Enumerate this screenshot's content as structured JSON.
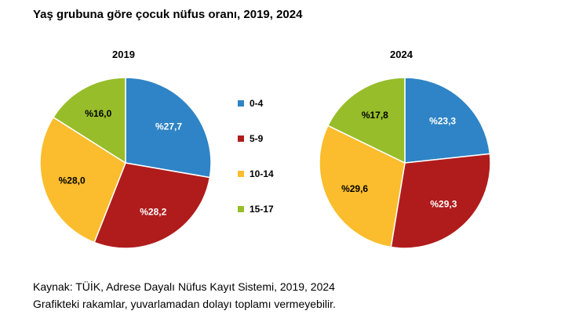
{
  "title": "Yaş grubuna göre çocuk nüfus oranı, 2019, 2024",
  "chart_data": [
    {
      "type": "pie",
      "title": "2019",
      "categories": [
        "0-4",
        "5-9",
        "10-14",
        "15-17"
      ],
      "values": [
        27.7,
        28.2,
        28.0,
        16.0
      ],
      "labels": [
        "%27,7",
        "%28,2",
        "%28,0",
        "%16,0"
      ],
      "colors": [
        "#2e84c6",
        "#b01c1c",
        "#fbbd2d",
        "#97bd2a"
      ]
    },
    {
      "type": "pie",
      "title": "2024",
      "categories": [
        "0-4",
        "5-9",
        "10-14",
        "15-17"
      ],
      "values": [
        23.3,
        29.3,
        29.6,
        17.8
      ],
      "labels": [
        "%23,3",
        "%29,3",
        "%29,6",
        "%17,8"
      ],
      "colors": [
        "#2e84c6",
        "#b01c1c",
        "#fbbd2d",
        "#97bd2a"
      ]
    }
  ],
  "legend": {
    "items": [
      {
        "label": "0-4",
        "color": "#2e84c6"
      },
      {
        "label": "5-9",
        "color": "#b01c1c"
      },
      {
        "label": "10-14",
        "color": "#fbbd2d"
      },
      {
        "label": "15-17",
        "color": "#97bd2a"
      }
    ]
  },
  "footer": {
    "source": "Kaynak: TÜİK, Adrese Dayalı Nüfus Kayıt Sistemi, 2019, 2024",
    "note": "Grafikteki rakamlar, yuvarlamadan dolayı toplamı vermeyebilir."
  }
}
